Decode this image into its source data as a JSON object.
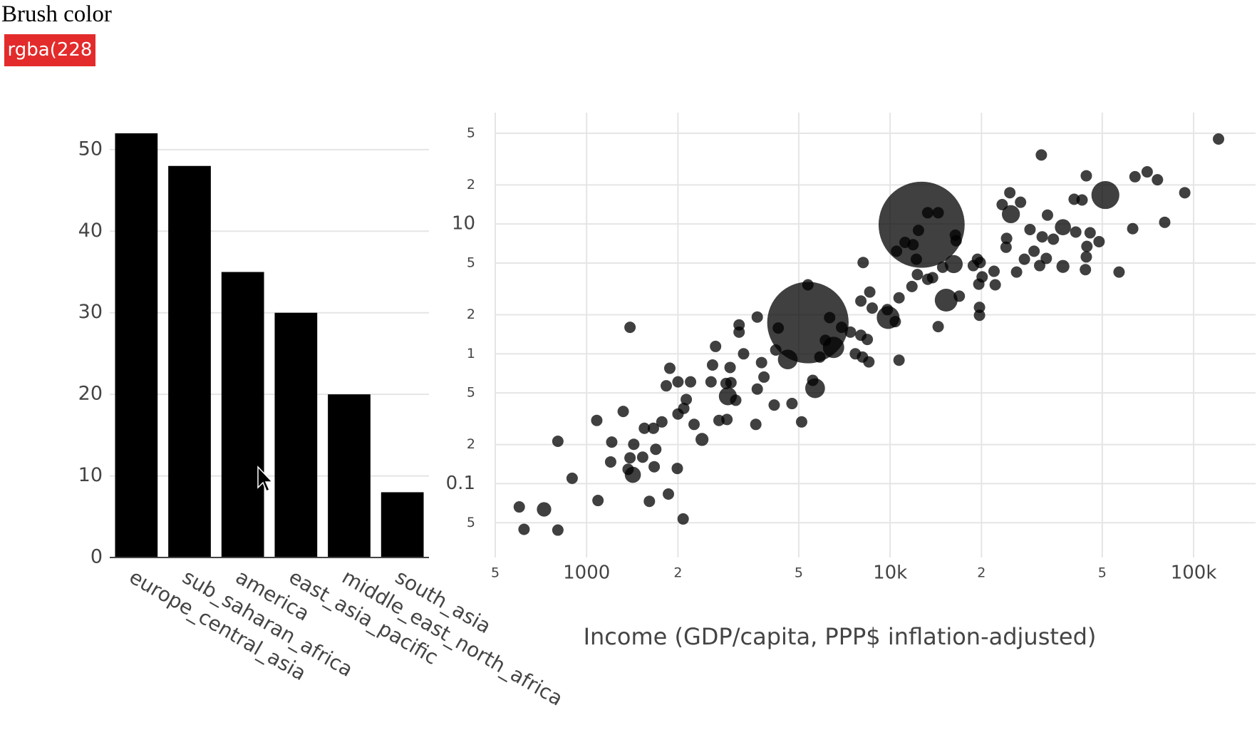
{
  "brush_label": "Brush color",
  "brush_button": "rgba(228",
  "chart_data": [
    {
      "type": "bar",
      "categories": [
        "europe_central_asia",
        "sub_saharan_africa",
        "america",
        "east_asia_pacific",
        "middle_east_north_africa",
        "south_asia"
      ],
      "values": [
        52,
        48,
        35,
        30,
        20,
        8
      ],
      "color": "#000000",
      "ylim": [
        0,
        52
      ],
      "yticks": [
        0,
        10,
        20,
        30,
        40,
        50
      ],
      "grid": true
    },
    {
      "type": "scatter",
      "x_label": "Income (GDP/capita, PPP$ inflation-adjusted)",
      "color": "#000000",
      "opacity": 0.75,
      "log_x": true,
      "log_y": true,
      "grid": true,
      "xlim": [
        500,
        160000
      ],
      "xticks": [
        {
          "value": 500,
          "label": "5"
        },
        1000,
        {
          "value": 2000,
          "label": "2"
        },
        {
          "value": 5000,
          "label": "5"
        },
        {
          "value": 10000,
          "label": "10k"
        },
        {
          "value": 20000,
          "label": "2"
        },
        {
          "value": 50000,
          "label": "5"
        },
        {
          "value": 100000,
          "label": "100k"
        }
      ],
      "ylim": [
        0.027,
        72
      ],
      "yticks": [
        {
          "value": 50,
          "label": "5"
        },
        {
          "value": 20,
          "label": "2"
        },
        10,
        {
          "value": 5,
          "label": "5"
        },
        {
          "value": 2,
          "label": "2"
        },
        1,
        {
          "value": 0.5,
          "label": "5"
        },
        {
          "value": 0.2,
          "label": "2"
        },
        0.1,
        {
          "value": 0.05,
          "label": "5"
        }
      ],
      "x": [
        120800,
        31500,
        51200,
        70300,
        64100,
        76000,
        93500,
        80300,
        63000,
        56800,
        48800,
        44300,
        44000,
        44500,
        37100,
        33000,
        40400,
        42900,
        44300,
        25000,
        23400,
        26900,
        28900,
        31700,
        34500,
        31100,
        37100,
        27700,
        29800,
        24200,
        24100,
        22000,
        22200,
        19800,
        19400,
        19600,
        20100,
        18800,
        19700,
        19700,
        16900,
        16200,
        15300,
        14400,
        12700,
        16400,
        16500,
        14400,
        13300,
        12400,
        11200,
        10500,
        12300,
        11800,
        13300,
        14900,
        8150,
        8570,
        8730,
        8010,
        9790,
        9850,
        10700,
        10400,
        8410,
        8010,
        7680,
        8510,
        8110,
        10700,
        5360,
        5360,
        6510,
        6920,
        6320,
        4280,
        4200,
        4600,
        5660,
        5560,
        4750,
        5110,
        4150,
        3650,
        3650,
        3840,
        3770,
        3290,
        3180,
        3180,
        2920,
        3100,
        2990,
        2970,
        2880,
        2660,
        2600,
        2570,
        2900,
        2730,
        3610,
        2200,
        2000,
        2130,
        2400,
        2260,
        2090,
        2000,
        1880,
        1830,
        1390,
        1770,
        1660,
        1550,
        1320,
        1080,
        1210,
        1430,
        1690,
        1530,
        1390,
        1200,
        1670,
        1370,
        1420,
        1990,
        804,
        896,
        1860,
        1610,
        1090,
        2080,
        724,
        600,
        622,
        804,
        24800,
        26100,
        32700,
        40900,
        45600,
        12200,
        13800,
        11900,
        6120,
        7400,
        5870
      ],
      "y": [
        45.1,
        34,
        16.7,
        25.2,
        23.1,
        21.9,
        17.4,
        10.3,
        9.2,
        4.26,
        7.31,
        5.58,
        4.45,
        6.72,
        9.44,
        11.7,
        15.5,
        15.3,
        23.5,
        11.9,
        14.1,
        14.7,
        9.06,
        7.96,
        7.64,
        4.78,
        4.71,
        5.35,
        6.17,
        7.74,
        6.62,
        4.32,
        3.4,
        5.05,
        5.35,
        3.44,
        3.91,
        4.78,
        2.28,
        1.98,
        2.78,
        4.91,
        2.59,
        1.62,
        9.86,
        8.2,
        7.42,
        12.2,
        12.2,
        8.93,
        7.21,
        6.17,
        4.08,
        3.3,
        3.75,
        4.64,
        5.05,
        2.99,
        2.25,
        2.55,
        2.19,
        1.9,
        2.7,
        1.77,
        1.29,
        1.39,
        1,
        0.867,
        0.944,
        0.893,
        1.74,
        3.4,
        1.12,
        1.6,
        1.9,
        1.58,
        1.07,
        0.905,
        0.543,
        0.625,
        0.414,
        0.299,
        0.403,
        1.92,
        0.535,
        0.662,
        0.856,
        1,
        1.67,
        1.47,
        0.471,
        0.439,
        0.6,
        0.785,
        0.591,
        1.14,
        0.82,
        0.608,
        0.312,
        0.307,
        0.286,
        0.608,
        0.608,
        0.445,
        0.219,
        0.286,
        0.38,
        0.344,
        0.774,
        0.567,
        1.6,
        0.299,
        0.267,
        0.267,
        0.36,
        0.307,
        0.209,
        0.201,
        0.184,
        0.16,
        0.158,
        0.147,
        0.135,
        0.129,
        0.117,
        0.131,
        0.212,
        0.11,
        0.0832,
        0.0731,
        0.0742,
        0.0535,
        0.0634,
        0.0662,
        0.0445,
        0.0439,
        17.4,
        4.26,
        5.43,
        8.67,
        8.55,
        5.35,
        3.86,
        6.92,
        1.27,
        1.47,
        0.944
      ],
      "sizes": [
        1,
        1,
        6,
        1,
        1,
        1,
        1,
        1,
        1,
        1,
        1,
        1,
        1,
        1,
        2,
        1,
        1,
        1,
        1,
        2.5,
        1,
        1,
        1,
        1,
        1,
        1,
        1.3,
        1,
        1,
        1,
        1,
        1,
        1,
        1,
        1,
        1,
        1,
        1,
        1,
        1,
        1,
        2.5,
        4,
        1,
        57,
        1,
        1,
        1,
        1,
        1,
        1,
        1,
        1,
        1,
        1,
        1,
        1,
        1,
        1,
        1,
        1,
        4,
        1,
        1,
        1,
        1,
        1,
        1,
        1,
        1,
        51,
        1,
        3.5,
        1,
        1,
        1,
        1,
        3,
        3,
        1,
        1,
        1,
        1,
        1,
        1,
        1,
        1,
        1,
        1,
        1,
        2.5,
        1,
        1,
        1,
        1,
        1,
        1,
        1,
        1,
        1,
        1,
        1,
        1,
        1,
        1.3,
        1,
        1,
        1,
        1,
        1,
        1,
        1,
        1,
        1,
        1,
        1,
        1,
        1,
        1,
        1,
        1,
        1,
        1,
        1,
        2,
        1,
        1,
        1,
        1,
        1,
        1,
        1,
        1.6,
        1,
        1,
        1,
        1,
        1,
        1,
        1,
        1,
        1,
        1,
        1,
        1,
        1,
        1
      ]
    }
  ]
}
